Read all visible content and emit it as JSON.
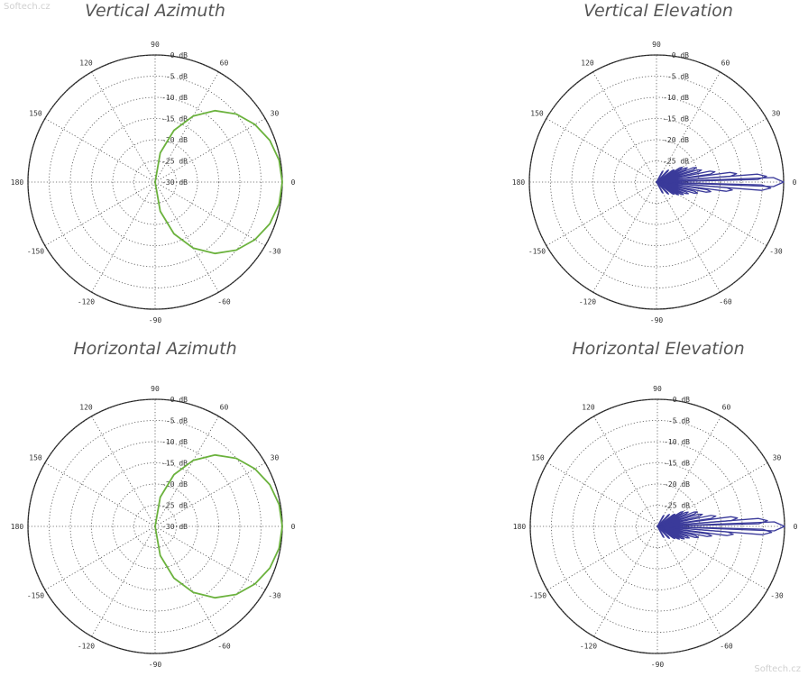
{
  "watermark": "Softech.cz",
  "colors": {
    "green": "#6bb23d",
    "blue": "#3a3a9a",
    "grid": "#555555",
    "text": "#333333"
  },
  "chart_data": [
    {
      "type": "polar",
      "title": "Vertical Azimuth",
      "angle_labels": [
        "0",
        "30",
        "60",
        "90",
        "120",
        "150",
        "180",
        "-150",
        "-120",
        "-90",
        "-60",
        "-30"
      ],
      "radial_labels": [
        "0 dB",
        "-5 dB",
        "-10 dB",
        "-15 dB",
        "-20 dB",
        "-25 dB",
        "-30 dB"
      ],
      "rlim": [
        -30,
        0
      ],
      "grid": true,
      "series": [
        {
          "style": "cardioid",
          "color": "#6bb23d",
          "angle_deg": [
            0,
            10,
            20,
            30,
            40,
            50,
            60,
            70,
            80,
            90
          ],
          "gain_db": [
            0,
            -0.3,
            -1.2,
            -2.8,
            -5,
            -8,
            -12,
            -17,
            -23,
            -30
          ]
        }
      ]
    },
    {
      "type": "polar",
      "title": "Vertical Elevation",
      "angle_labels": [
        "0",
        "30",
        "60",
        "90",
        "120",
        "150",
        "180",
        "-150",
        "-120",
        "-90",
        "-60",
        "-30"
      ],
      "radial_labels": [
        "0 dB",
        "-5 dB",
        "-10 dB",
        "-15 dB",
        "-20 dB",
        "-25 dB",
        "-30 dB"
      ],
      "rlim": [
        -30,
        0
      ],
      "grid": true,
      "series": [
        {
          "style": "lobes",
          "color": "#3a3a9a",
          "angle_deg": [
            -6,
            -3,
            0,
            3,
            6,
            10,
            15,
            20,
            25,
            30,
            35,
            -10,
            -15,
            -20,
            -25,
            -30,
            -35,
            45,
            -45,
            60,
            -60
          ],
          "gain_db": [
            -12,
            -3,
            0,
            -4,
            -11,
            -16,
            -19,
            -20,
            -22,
            -23,
            -25,
            -17,
            -20,
            -22,
            -23,
            -24,
            -25,
            -26,
            -26,
            -27,
            -27
          ]
        }
      ]
    },
    {
      "type": "polar",
      "title": "Horizontal Azimuth",
      "angle_labels": [
        "0",
        "30",
        "60",
        "90",
        "120",
        "150",
        "180",
        "-150",
        "-120",
        "-90",
        "-60",
        "-30"
      ],
      "radial_labels": [
        "0 dB",
        "-5 dB",
        "-10 dB",
        "-15 dB",
        "-20 dB",
        "-25 dB",
        "-30 dB"
      ],
      "rlim": [
        -30,
        0
      ],
      "grid": true,
      "series": [
        {
          "style": "cardioid",
          "color": "#6bb23d",
          "angle_deg": [
            0,
            10,
            20,
            30,
            40,
            50,
            60,
            70,
            80,
            90
          ],
          "gain_db": [
            0,
            -0.3,
            -1.2,
            -2.8,
            -5,
            -8,
            -12,
            -17,
            -23,
            -30
          ]
        }
      ]
    },
    {
      "type": "polar",
      "title": "Horizontal Elevation",
      "angle_labels": [
        "0",
        "30",
        "60",
        "90",
        "120",
        "150",
        "180",
        "-150",
        "-120",
        "-90",
        "-60",
        "-30"
      ],
      "radial_labels": [
        "0 dB",
        "-5 dB",
        "-10 dB",
        "-15 dB",
        "-20 dB",
        "-25 dB",
        "-30 dB"
      ],
      "rlim": [
        -30,
        0
      ],
      "grid": true,
      "series": [
        {
          "style": "lobes",
          "color": "#3a3a9a",
          "angle_deg": [
            -6,
            -3,
            0,
            3,
            6,
            10,
            15,
            20,
            25,
            30,
            35,
            -10,
            -15,
            -20,
            -25,
            -30,
            -35,
            45,
            -45,
            60,
            -60
          ],
          "gain_db": [
            -12,
            -3,
            0,
            -4,
            -11,
            -16,
            -19,
            -20,
            -22,
            -23,
            -25,
            -17,
            -20,
            -22,
            -23,
            -24,
            -25,
            -26,
            -26,
            -27,
            -27
          ]
        }
      ]
    }
  ]
}
